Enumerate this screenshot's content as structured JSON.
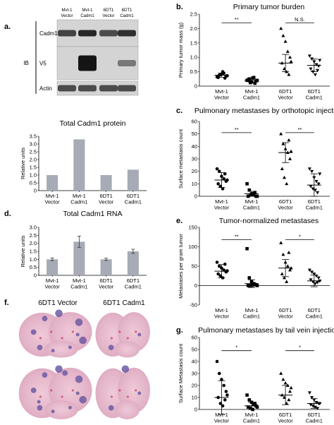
{
  "figure": {
    "panel_a": {
      "letter": "a.",
      "lanes": [
        [
          "Mvt-1",
          "Vector"
        ],
        [
          "Mvt-1",
          "Cadm1"
        ],
        [
          "6DT1",
          "Vector"
        ],
        [
          "6DT1",
          "Cadm1"
        ]
      ],
      "ib_label": "IB",
      "blots": [
        {
          "label": "Cadm1",
          "intensity": [
            0.75,
            0.9,
            0.7,
            0.85
          ]
        },
        {
          "label": "V5",
          "intensity": [
            0.0,
            1.0,
            0.0,
            0.45
          ]
        },
        {
          "label": "Actin",
          "intensity": [
            0.7,
            0.7,
            0.7,
            0.7
          ]
        }
      ]
    },
    "panel_f": {
      "letter": "f.",
      "labels": [
        "6DT1 Vector",
        "6DT1 Cadm1"
      ]
    }
  },
  "chart_data": [
    {
      "id": "a_protein",
      "type": "bar",
      "title": "Total Cadm1 protein",
      "ylabel": "Relative units",
      "ylim": [
        0,
        3.5
      ],
      "yticks": [
        "0",
        "0.5",
        "1.0",
        "1.5",
        "2.0",
        "2.5",
        "3.0",
        "3.5"
      ],
      "categories": [
        [
          "Mvt-1",
          "Vector"
        ],
        [
          "Mvt-1",
          "Cadm1"
        ],
        [
          "6DT1",
          "Vector"
        ],
        [
          "6DT1",
          "Cadm1"
        ]
      ],
      "values": [
        1.0,
        3.3,
        1.0,
        1.35
      ]
    },
    {
      "id": "d_rna",
      "type": "bar",
      "letter": "d.",
      "title": "Total Cadm1 RNA",
      "ylabel": "Relative units",
      "ylim": [
        0,
        3.0
      ],
      "yticks": [
        "0",
        "0.5",
        "1.0",
        "1.5",
        "2.0",
        "2.5",
        "3.0"
      ],
      "categories": [
        [
          "Mvt-1",
          "Vector"
        ],
        [
          "Mvt-1",
          "Cadm1"
        ],
        [
          "6DT1",
          "Vector"
        ],
        [
          "6DT1",
          "Cadm1"
        ]
      ],
      "values": [
        1.0,
        2.1,
        1.0,
        1.5
      ],
      "errors": [
        0.08,
        0.35,
        0.07,
        0.13
      ]
    },
    {
      "id": "b",
      "type": "scatter",
      "letter": "b.",
      "title": "Primary tumor burden",
      "ylabel": "Primary tumor mass (g)",
      "ylim": [
        0,
        2.5
      ],
      "yticks": [
        "0",
        "0.5",
        "1.0",
        "1.5",
        "2.0",
        "2.5"
      ],
      "categories": [
        [
          "Mvt-1",
          "Vector"
        ],
        [
          "Mvt-1",
          "Cadm1"
        ],
        [
          "6DT1",
          "Vector"
        ],
        [
          "6DT1",
          "Cadm1"
        ]
      ],
      "markers": [
        "circle",
        "square",
        "triangle",
        "triangle-down"
      ],
      "series": [
        {
          "values": [
            0.32,
            0.38,
            0.42,
            0.45,
            0.35,
            0.3,
            0.4,
            0.5,
            0.28,
            0.36
          ],
          "mean": 0.38,
          "sd": 0.07
        },
        {
          "values": [
            0.2,
            0.25,
            0.15,
            0.3,
            0.18,
            0.22,
            0.12,
            0.28,
            0.1,
            0.2
          ],
          "mean": 0.2,
          "sd": 0.06
        },
        {
          "values": [
            2.0,
            1.75,
            1.55,
            1.2,
            1.0,
            0.8,
            0.6,
            0.5,
            0.4,
            0.85
          ],
          "mean": 0.8,
          "sd": 0.3
        },
        {
          "values": [
            1.05,
            0.95,
            0.85,
            0.75,
            0.7,
            0.6,
            0.5,
            0.4,
            0.55,
            0.9
          ],
          "mean": 0.72,
          "sd": 0.22
        }
      ],
      "comparisons": [
        {
          "from": 0,
          "to": 1,
          "label": "**",
          "y": 2.2
        },
        {
          "from": 2,
          "to": 3,
          "label": "N.S.",
          "y": 2.2
        }
      ]
    },
    {
      "id": "c",
      "type": "scatter",
      "letter": "c.",
      "title": "Pulmonary metastases by orthotopic injection",
      "ylabel": "Surface metastasis count",
      "ylim": [
        0,
        60
      ],
      "yticks": [
        "0",
        "10",
        "20",
        "30",
        "40",
        "50",
        "60"
      ],
      "categories": [
        [
          "Mvt-1",
          "Vector"
        ],
        [
          "Mvt-1",
          "Cadm1"
        ],
        [
          "6DT1",
          "Vector"
        ],
        [
          "6DT1",
          "Cadm1"
        ]
      ],
      "markers": [
        "circle",
        "square",
        "triangle",
        "triangle-down"
      ],
      "series": [
        {
          "values": [
            22,
            20,
            16,
            14,
            12,
            10,
            8,
            6,
            18,
            13
          ],
          "mean": 13,
          "sd": 6
        },
        {
          "values": [
            10,
            5,
            2,
            1,
            0,
            0,
            1,
            2,
            3,
            0
          ],
          "mean": 2,
          "sd": 2
        },
        {
          "values": [
            50,
            42,
            38,
            35,
            30,
            22,
            15,
            10,
            45,
            36
          ],
          "mean": 35,
          "sd": 8
        },
        {
          "values": [
            22,
            20,
            15,
            12,
            10,
            8,
            6,
            5,
            3,
            18
          ],
          "mean": 9,
          "sd": 9
        }
      ],
      "comparisons": [
        {
          "from": 0,
          "to": 1,
          "label": "**",
          "y": 51
        },
        {
          "from": 2,
          "to": 3,
          "label": "**",
          "y": 51
        }
      ]
    },
    {
      "id": "e",
      "type": "scatter",
      "letter": "e.",
      "title": "Tumor-normalized metastases",
      "ylabel": "Metastases per gram tumor",
      "ylim": [
        -50,
        150
      ],
      "yticks": [
        "-50",
        "0",
        "50",
        "100",
        "150"
      ],
      "categories": [
        [
          "Mvt-1",
          "Vector"
        ],
        [
          "Mvt-1",
          "Cadm1"
        ],
        [
          "6DT1",
          "Vector"
        ],
        [
          "6DT1",
          "Cadm1"
        ]
      ],
      "markers": [
        "circle",
        "square",
        "triangle",
        "triangle-down"
      ],
      "series": [
        {
          "values": [
            60,
            50,
            45,
            40,
            35,
            30,
            25,
            20,
            55,
            38
          ],
          "mean": 37,
          "sd": 17
        },
        {
          "values": [
            95,
            20,
            10,
            5,
            2,
            0,
            0,
            1,
            3,
            0
          ],
          "mean": 5,
          "sd": 10
        },
        {
          "values": [
            110,
            80,
            60,
            50,
            40,
            30,
            20,
            10,
            85,
            45
          ],
          "mean": 45,
          "sd": 22
        },
        {
          "values": [
            40,
            35,
            30,
            25,
            20,
            15,
            10,
            5,
            8,
            12
          ],
          "mean": 12,
          "sd": 15
        }
      ],
      "comparisons": [
        {
          "from": 0,
          "to": 1,
          "label": "**",
          "y": 118
        },
        {
          "from": 2,
          "to": 3,
          "label": "*",
          "y": 118
        }
      ]
    },
    {
      "id": "g",
      "type": "scatter",
      "letter": "g.",
      "title": "Pulmonary metastases by tail vein injection",
      "ylabel": "Surface Metastasis count",
      "ylim": [
        0,
        60
      ],
      "yticks": [
        "0",
        "10",
        "20",
        "30",
        "40",
        "50",
        "60"
      ],
      "categories": [
        [
          "Mvt-1",
          "Vector"
        ],
        [
          "Mvt-1",
          "Cadm1"
        ],
        [
          "6DT1",
          "Vector"
        ],
        [
          "6DT1",
          "Cadm1"
        ]
      ],
      "markers": [
        "circle",
        "square",
        "triangle",
        "triangle-down"
      ],
      "series": [
        {
          "values": [
            40,
            30,
            25,
            20,
            15,
            10,
            5,
            3,
            8,
            12
          ],
          "mean": 10,
          "sd": 14
        },
        {
          "values": [
            12,
            8,
            6,
            4,
            3,
            2,
            1,
            0,
            5,
            2
          ],
          "mean": 3,
          "sd": 3
        },
        {
          "values": [
            30,
            25,
            22,
            20,
            15,
            12,
            10,
            5,
            8,
            18
          ],
          "mean": 12,
          "sd": 8
        },
        {
          "values": [
            14,
            10,
            8,
            6,
            5,
            4,
            3,
            2,
            1,
            5
          ],
          "mean": 5,
          "sd": 4
        }
      ],
      "comparisons": [
        {
          "from": 0,
          "to": 1,
          "label": "*",
          "y": 49
        },
        {
          "from": 2,
          "to": 3,
          "label": "*",
          "y": 49
        }
      ]
    }
  ]
}
